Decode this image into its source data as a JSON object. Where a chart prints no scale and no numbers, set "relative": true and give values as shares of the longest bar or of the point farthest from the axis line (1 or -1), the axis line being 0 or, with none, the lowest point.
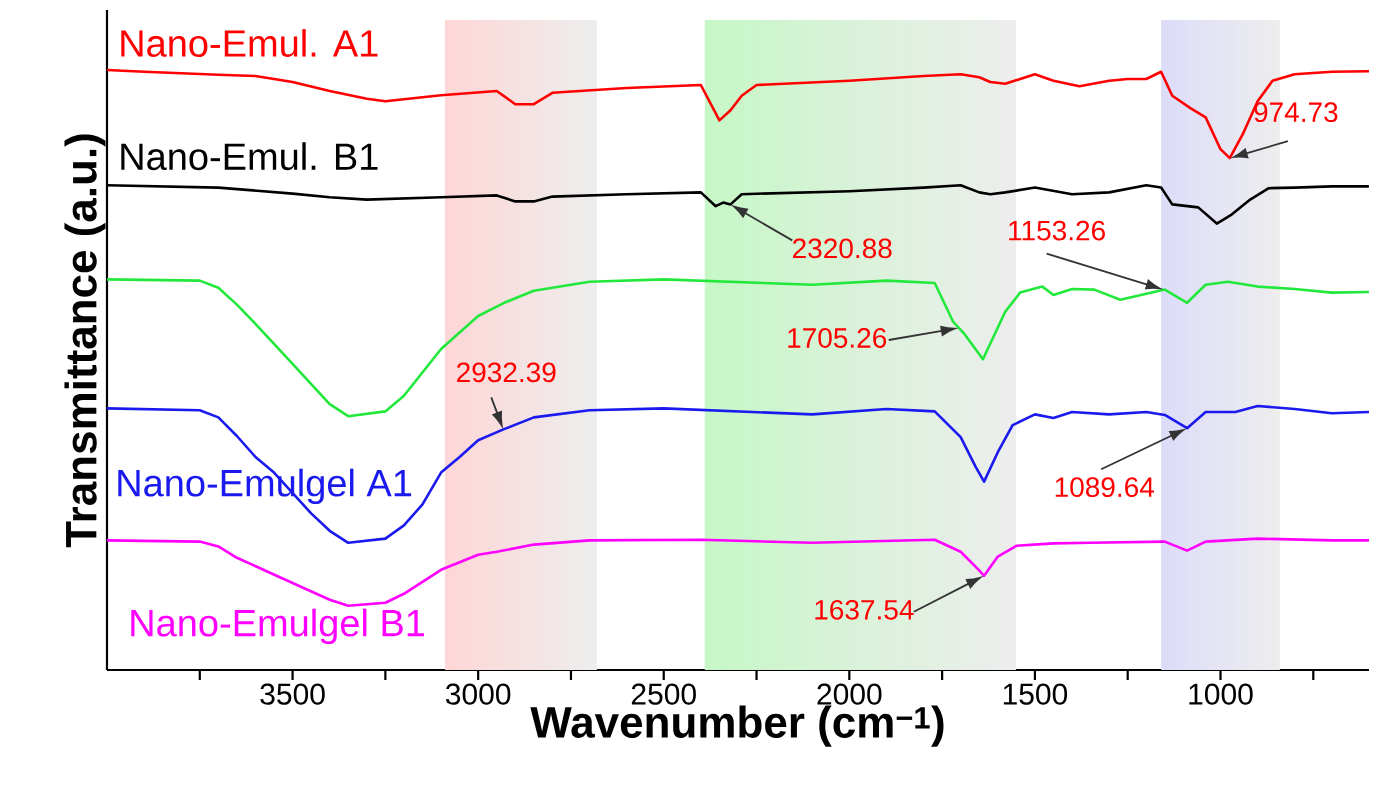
{
  "chart_data": {
    "type": "line",
    "relative": true,
    "xlabel": "Wavenumber (cm$^{−1}$)",
    "ylabel": "Transmittance (a.u.)",
    "xlim": [
      4000,
      600
    ],
    "xticks": [
      {
        "value": 3750,
        "label": null
      },
      3500,
      {
        "value": 3250,
        "label": null
      },
      3000,
      {
        "value": 2750,
        "label": null
      },
      2500,
      {
        "value": 2250,
        "label": null
      },
      2000,
      {
        "value": 1750,
        "label": null
      },
      1500,
      {
        "value": 1250,
        "label": null
      },
      1000,
      {
        "value": 750,
        "label": null
      }
    ],
    "bands": [
      {
        "axis": "x",
        "from": 3090,
        "to": 2680,
        "color": "#ffd6d6"
      },
      {
        "axis": "x",
        "from": 2390,
        "to": 1550,
        "color": "#c6f7c6"
      },
      {
        "axis": "x",
        "from": 1160,
        "to": 840,
        "color": "#dcdcfa"
      }
    ],
    "series": [
      {
        "name": "Nano-Emul. A1",
        "color": "#ff0000",
        "x": [
          4000,
          3900,
          3700,
          3600,
          3500,
          3400,
          3300,
          3250,
          3100,
          2950,
          2900,
          2850,
          2800,
          2600,
          2400,
          2350,
          2320,
          2290,
          2250,
          2000,
          1800,
          1700,
          1650,
          1620,
          1580,
          1500,
          1450,
          1380,
          1300,
          1250,
          1200,
          1160,
          1130,
          1080,
          1040,
          1000,
          975,
          940,
          900,
          860,
          800,
          700,
          600
        ],
        "values": [
          1.0,
          0.997,
          0.992,
          0.99,
          0.98,
          0.965,
          0.952,
          0.948,
          0.958,
          0.965,
          0.943,
          0.943,
          0.962,
          0.97,
          0.975,
          0.916,
          0.933,
          0.957,
          0.975,
          0.982,
          0.99,
          0.993,
          0.988,
          0.98,
          0.977,
          0.993,
          0.982,
          0.973,
          0.982,
          0.985,
          0.985,
          0.997,
          0.957,
          0.936,
          0.921,
          0.868,
          0.853,
          0.893,
          0.948,
          0.982,
          0.993,
          0.997,
          0.998
        ]
      },
      {
        "name": "Nano-Emul. B1",
        "color": "#000000",
        "x": [
          4000,
          3700,
          3500,
          3400,
          3300,
          3100,
          2950,
          2900,
          2850,
          2800,
          2600,
          2400,
          2360,
          2340,
          2320,
          2290,
          2000,
          1800,
          1700,
          1650,
          1620,
          1580,
          1500,
          1400,
          1300,
          1200,
          1160,
          1130,
          1060,
          1010,
          970,
          920,
          870,
          800,
          700,
          600
        ],
        "values": [
          0.808,
          0.804,
          0.794,
          0.788,
          0.784,
          0.788,
          0.791,
          0.781,
          0.781,
          0.789,
          0.793,
          0.796,
          0.773,
          0.779,
          0.776,
          0.793,
          0.798,
          0.804,
          0.808,
          0.796,
          0.793,
          0.796,
          0.804,
          0.793,
          0.796,
          0.808,
          0.804,
          0.776,
          0.771,
          0.744,
          0.759,
          0.784,
          0.803,
          0.804,
          0.806,
          0.806
        ]
      },
      {
        "color": "#22e83c",
        "x": [
          4000,
          3750,
          3700,
          3650,
          3600,
          3500,
          3400,
          3350,
          3250,
          3200,
          3100,
          3000,
          2930,
          2850,
          2700,
          2500,
          2100,
          1900,
          1770,
          1720,
          1690,
          1640,
          1580,
          1540,
          1480,
          1450,
          1400,
          1340,
          1270,
          1150,
          1090,
          1040,
          980,
          900,
          800,
          700,
          600
        ],
        "values": [
          0.651,
          0.649,
          0.637,
          0.609,
          0.577,
          0.51,
          0.443,
          0.423,
          0.431,
          0.457,
          0.535,
          0.59,
          0.612,
          0.632,
          0.647,
          0.651,
          0.642,
          0.649,
          0.645,
          0.58,
          0.56,
          0.518,
          0.597,
          0.629,
          0.639,
          0.625,
          0.635,
          0.634,
          0.617,
          0.634,
          0.612,
          0.642,
          0.647,
          0.639,
          0.635,
          0.629,
          0.63
        ]
      },
      {
        "name": "Nano-Emulgel A1",
        "color": "#1a1aee",
        "x": [
          4000,
          3750,
          3700,
          3650,
          3600,
          3550,
          3450,
          3400,
          3350,
          3250,
          3200,
          3150,
          3100,
          3050,
          3000,
          2932,
          2850,
          2700,
          2500,
          2100,
          1900,
          1770,
          1700,
          1660,
          1637,
          1600,
          1560,
          1500,
          1450,
          1400,
          1300,
          1200,
          1150,
          1090,
          1040,
          960,
          900,
          800,
          700,
          600
        ],
        "values": [
          0.436,
          0.433,
          0.421,
          0.39,
          0.355,
          0.329,
          0.261,
          0.232,
          0.212,
          0.219,
          0.241,
          0.276,
          0.329,
          0.355,
          0.383,
          0.401,
          0.421,
          0.433,
          0.436,
          0.426,
          0.435,
          0.431,
          0.388,
          0.339,
          0.314,
          0.363,
          0.408,
          0.426,
          0.42,
          0.43,
          0.426,
          0.43,
          0.425,
          0.403,
          0.43,
          0.43,
          0.44,
          0.435,
          0.428,
          0.43
        ]
      },
      {
        "name": "Nano-Emulgel B1",
        "color": "#ff00ff",
        "x": [
          4000,
          3750,
          3700,
          3650,
          3500,
          3400,
          3350,
          3250,
          3200,
          3100,
          3000,
          2950,
          2850,
          2700,
          2400,
          2100,
          1770,
          1700,
          1650,
          1637,
          1600,
          1550,
          1450,
          1350,
          1150,
          1090,
          1040,
          900,
          700,
          600
        ],
        "values": [
          0.216,
          0.214,
          0.206,
          0.187,
          0.145,
          0.117,
          0.107,
          0.112,
          0.127,
          0.167,
          0.192,
          0.197,
          0.209,
          0.216,
          0.217,
          0.212,
          0.217,
          0.197,
          0.166,
          0.157,
          0.189,
          0.207,
          0.211,
          0.212,
          0.214,
          0.199,
          0.214,
          0.219,
          0.216,
          0.216
        ]
      }
    ],
    "annotations": [
      {
        "text": "974.73",
        "x": 974.73,
        "y": 0.853
      },
      {
        "text": "2320.88",
        "x": 2320.88,
        "y": 0.776
      },
      {
        "text": "1153.26",
        "x": 1153.26,
        "y": 0.634
      },
      {
        "text": "1705.26",
        "x": 1705.26,
        "y": 0.57
      },
      {
        "text": "2932.39",
        "x": 2932.39,
        "y": 0.401
      },
      {
        "text": "1089.64",
        "x": 1089.64,
        "y": 0.403
      },
      {
        "text": "1637.54",
        "x": 1637.54,
        "y": 0.157
      }
    ]
  }
}
